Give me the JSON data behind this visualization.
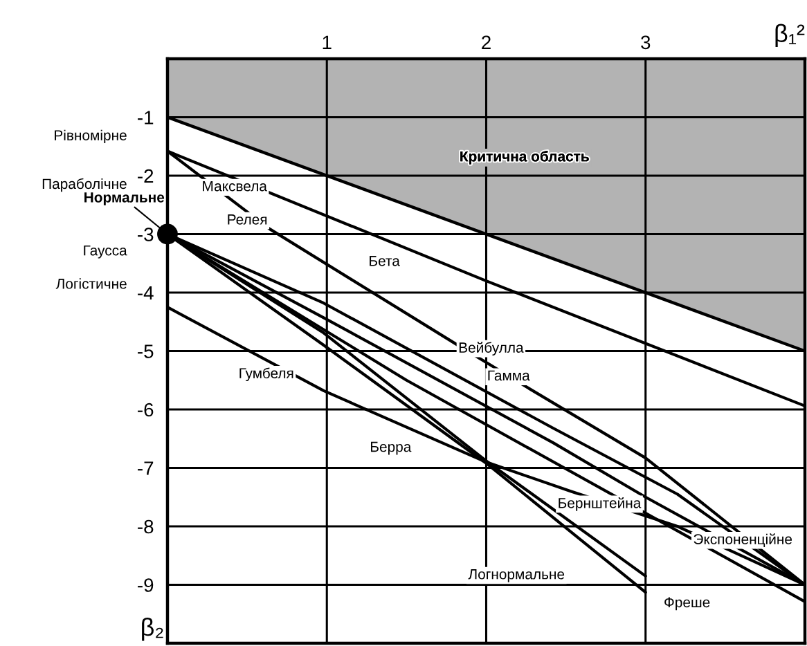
{
  "chart_data": {
    "type": "line",
    "xlabel": "β₁²",
    "ylabel": "β₂",
    "xlim": [
      0,
      4
    ],
    "ylim": [
      -10,
      0
    ],
    "xticks": [
      {
        "value": 0,
        "label": null
      },
      1,
      2,
      3,
      {
        "value": 4,
        "label": null
      }
    ],
    "yticks": [
      -9,
      -8,
      -7,
      -6,
      -5,
      -4,
      -3,
      -2,
      -1
    ],
    "grid": true,
    "legend": false,
    "series": [
      {
        "type": "area",
        "color": "#b3b3b3",
        "x": [
          0,
          4
        ],
        "values": [
          -1,
          -5
        ]
      },
      {
        "color": "#000000",
        "x": [
          0,
          2,
          4
        ],
        "values": [
          -1.58,
          -3.8,
          -5.94
        ]
      },
      {
        "color": "#000000",
        "x": [
          0,
          0.64,
          1.81,
          2.25,
          3.0,
          4
        ],
        "values": [
          -1.58,
          -2.91,
          -4.88,
          -5.61,
          -6.83,
          -9.0
        ]
      },
      {
        "color": "#000000",
        "x": [
          0,
          0.98,
          2.42,
          3.2,
          4
        ],
        "values": [
          -3,
          -4.18,
          -6.32,
          -7.45,
          -9.0
        ]
      },
      {
        "color": "#000000",
        "x": [
          0,
          0.98,
          2.42,
          3.0,
          4
        ],
        "values": [
          -3,
          -4.43,
          -6.57,
          -7.5,
          -9.0
        ]
      },
      {
        "color": "#000000",
        "x": [
          0,
          0.98,
          2.0,
          3.0
        ],
        "values": [
          -3,
          -4.69,
          -6.88,
          -8.85
        ]
      },
      {
        "color": "#000000",
        "x": [
          0,
          0.98,
          2.0,
          3.0
        ],
        "values": [
          -3,
          -4.9,
          -6.92,
          -9.13
        ]
      },
      {
        "color": "#000000",
        "x": [
          0,
          0.98,
          2.0,
          2.53,
          3.2,
          4
        ],
        "values": [
          -4.25,
          -5.68,
          -6.9,
          -7.4,
          -8.0,
          -9.0
        ]
      },
      {
        "color": "#000000",
        "x": [
          0,
          1.5,
          4
        ],
        "values": [
          -3,
          -5.5,
          -9.29
        ]
      },
      {
        "type": "scatter",
        "color": "#000000",
        "marker": "circle",
        "x": [
          0
        ],
        "values": [
          -3
        ]
      }
    ],
    "annotations": [
      "Критична область",
      "Максвела",
      "Релея",
      "Бета",
      "Вейбулла",
      "Гамма",
      "Гумбеля",
      "Берра",
      "Бернштейна",
      "Экспоненційне",
      "Логнормальне",
      "Фреше",
      "Рівномірне",
      "Параболічне",
      {
        "text": "Нормальне",
        "x": 0,
        "y": -3
      },
      "Гаусса",
      "Логістичне"
    ]
  }
}
